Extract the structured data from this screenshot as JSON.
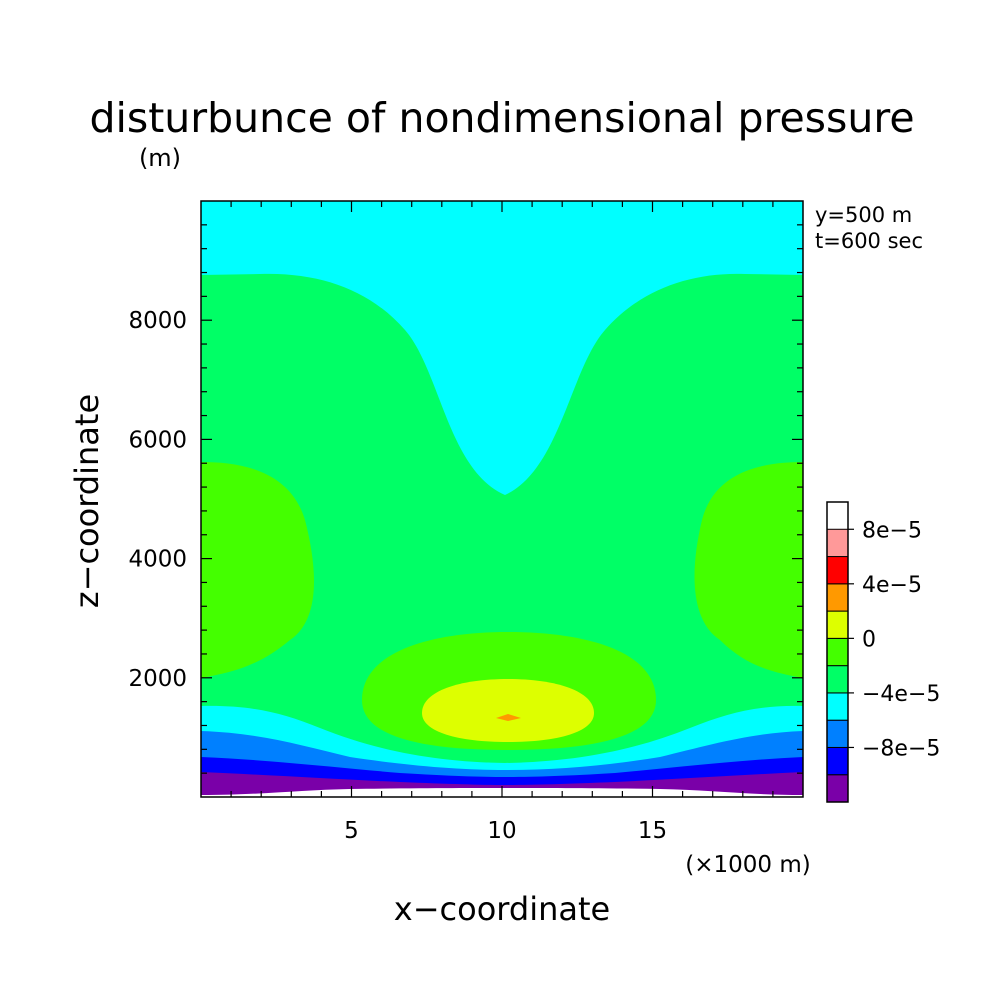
{
  "chart_data": {
    "type": "heatmap",
    "title": "disturbunce of nondimensional pressure",
    "units_label": "(m)",
    "xlabel": "x−coordinate",
    "ylabel": "z−coordinate",
    "x_scale_label": "(×1000 m)",
    "annotations": [
      "y=500 m",
      "t=600 sec"
    ],
    "xlim": [
      0,
      20000
    ],
    "ylim": [
      0,
      10000
    ],
    "x_ticks": [
      {
        "value": 5000,
        "label": "5"
      },
      {
        "value": 10000,
        "label": "10"
      },
      {
        "value": 15000,
        "label": "15"
      }
    ],
    "y_ticks": [
      {
        "value": 2000,
        "label": "2000"
      },
      {
        "value": 4000,
        "label": "4000"
      },
      {
        "value": 6000,
        "label": "6000"
      },
      {
        "value": 8000,
        "label": "8000"
      }
    ],
    "colorbar": {
      "levels": [
        -0.00012,
        -0.0001,
        -8e-05,
        -6e-05,
        -4e-05,
        -2e-05,
        0,
        2e-05,
        4e-05,
        6e-05,
        8e-05,
        0.0001
      ],
      "colors": [
        "#7a00a8",
        "#0000ff",
        "#0080ff",
        "#00ffff",
        "#00ff66",
        "#44ff00",
        "#ddff00",
        "#ff9900",
        "#ff0000",
        "#ff9999"
      ],
      "tick_labels": [
        {
          "value": -8e-05,
          "label": "−8e−5"
        },
        {
          "value": -4e-05,
          "label": "−4e−5"
        },
        {
          "value": 0,
          "label": "0"
        },
        {
          "value": 4e-05,
          "label": "4e−5"
        },
        {
          "value": 8e-05,
          "label": "8e−5"
        }
      ]
    },
    "regions": [
      {
        "level": "-1.2e-4 to -1e-4",
        "description": "purple band near surface z~0-400"
      },
      {
        "level": "-1e-4 to -8e-5",
        "description": "blue band z~400-800"
      },
      {
        "level": "-8e-5 to -6e-5",
        "description": "light blue band z~800-1200"
      },
      {
        "level": "-6e-5 to -4e-5",
        "description": "cyan band z~1200-1600 and upper region above ~8700 with dip to ~5100 at x=10000"
      },
      {
        "level": "-4e-5 to 0",
        "description": "green main body"
      },
      {
        "level": "0 to 4e-5",
        "description": "lime lobes at x edges z~2200-5600 and above ~ridge over center z~1000-2800"
      },
      {
        "level": "4e-5 to 6e-5",
        "description": "yellow ellipse centered x~10000 z~1500"
      },
      {
        "level": "6e-5 to 8e-5",
        "description": "small orange spot at x~10000 z~1450"
      }
    ]
  }
}
